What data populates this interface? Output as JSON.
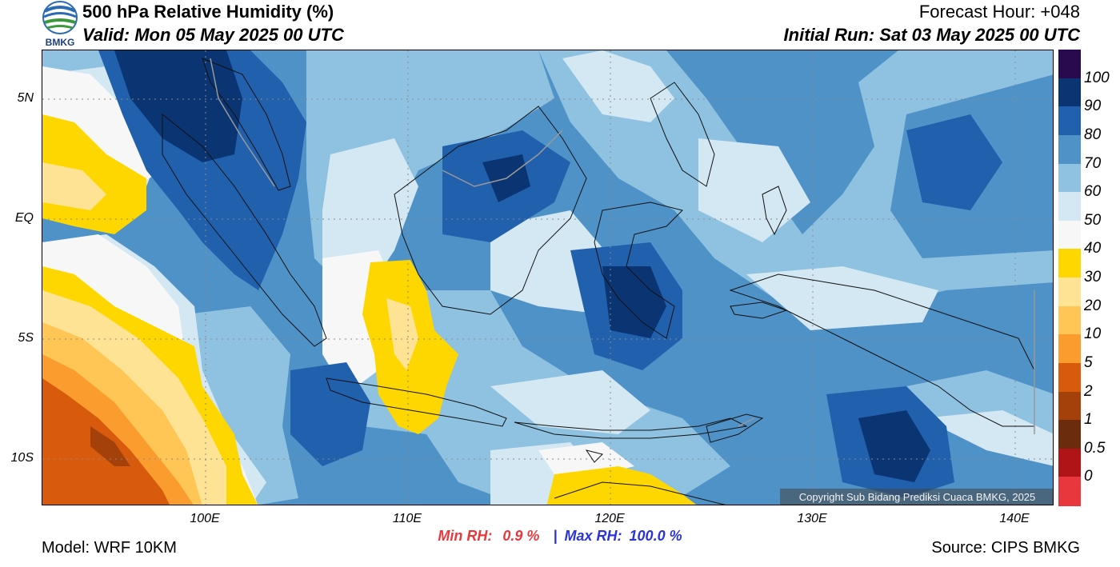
{
  "header": {
    "title": "500 hPa Relative Humidity (%)",
    "valid": "Valid: Mon 05 May 2025 00 UTC",
    "forecast_hour": "Forecast Hour: +048",
    "initial_run": "Initial Run: Sat 03 May 2025 00 UTC"
  },
  "logo": {
    "text": "BMKG",
    "icon": "bmkg-logo-icon"
  },
  "map": {
    "lat_labels": [
      "5N",
      "EQ",
      "5S",
      "10S"
    ],
    "lon_labels": [
      "100E",
      "110E",
      "120E",
      "130E",
      "140E"
    ],
    "copyright": "Copyright Sub Bidang Prediksi Cuaca BMKG, 2025"
  },
  "colorbar": {
    "labels": [
      "100",
      "90",
      "80",
      "70",
      "60",
      "50",
      "40",
      "30",
      "20",
      "10",
      "5",
      "2",
      "1",
      "0.5",
      "0"
    ],
    "colors": [
      "#2a0a4e",
      "#0b3473",
      "#2060ad",
      "#4e92c7",
      "#8fc1e0",
      "#d4e8f3",
      "#f7f7f7",
      "#ffd700",
      "#ffe394",
      "#ffc655",
      "#fb9c2e",
      "#d85a0c",
      "#a4400a",
      "#6b2c0e",
      "#b01416",
      "#e8383d"
    ]
  },
  "stats": {
    "min_label": "Min RH:",
    "min_value": "0.9 %",
    "separator": "|",
    "max_label": "Max RH:",
    "max_value": "100.0 %"
  },
  "footer": {
    "model": "Model: WRF 10KM",
    "source": "Source: CIPS BMKG"
  }
}
